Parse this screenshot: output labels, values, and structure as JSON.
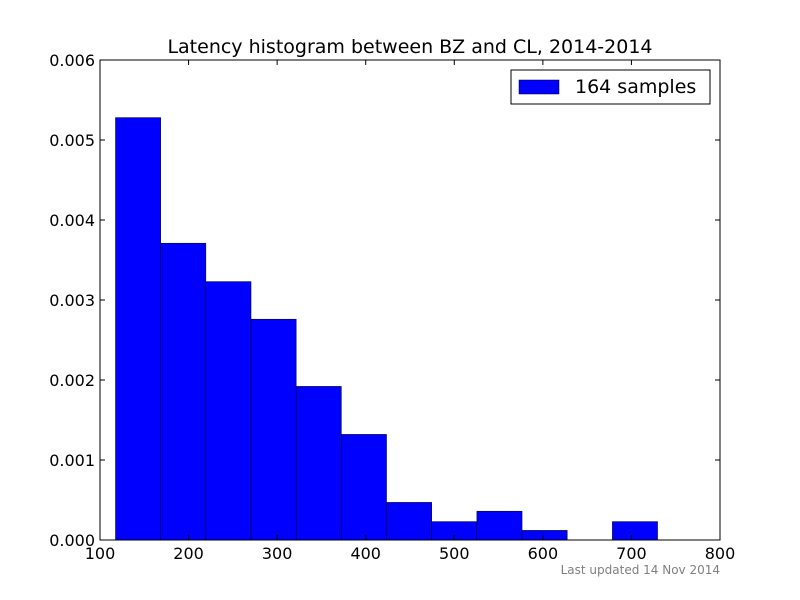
{
  "chart_data": {
    "type": "bar",
    "title": "Latency histogram between BZ and CL, 2014-2014",
    "xlabel": "",
    "ylabel": "",
    "xlim": [
      100,
      800
    ],
    "ylim": [
      0,
      0.006
    ],
    "x_ticks": [
      100,
      200,
      300,
      400,
      500,
      600,
      700,
      800
    ],
    "x_tick_labels": [
      "100",
      "200",
      "300",
      "400",
      "500",
      "600",
      "700",
      "800"
    ],
    "y_ticks": [
      0,
      0.001,
      0.002,
      0.003,
      0.004,
      0.005,
      0.006
    ],
    "y_tick_labels": [
      "0.000",
      "0.001",
      "0.002",
      "0.003",
      "0.004",
      "0.005",
      "0.006"
    ],
    "grid": false,
    "legend_position": "top-right",
    "series": [
      {
        "name": "164 samples",
        "color": "#0000ff",
        "bins": [
          {
            "x0": 117.5,
            "x1": 168.5,
            "value": 0.00528
          },
          {
            "x0": 168.5,
            "x1": 219.5,
            "value": 0.00371
          },
          {
            "x0": 219.5,
            "x1": 270.5,
            "value": 0.00323
          },
          {
            "x0": 270.5,
            "x1": 321.5,
            "value": 0.00276
          },
          {
            "x0": 321.5,
            "x1": 372.5,
            "value": 0.00192
          },
          {
            "x0": 372.5,
            "x1": 423.5,
            "value": 0.00132
          },
          {
            "x0": 423.5,
            "x1": 474.5,
            "value": 0.00047
          },
          {
            "x0": 474.5,
            "x1": 525.5,
            "value": 0.00023
          },
          {
            "x0": 525.5,
            "x1": 576.5,
            "value": 0.00036
          },
          {
            "x0": 576.5,
            "x1": 627.5,
            "value": 0.00012
          },
          {
            "x0": 627.5,
            "x1": 678.5,
            "value": 0
          },
          {
            "x0": 678.5,
            "x1": 729.5,
            "value": 0.00023
          }
        ]
      }
    ],
    "footer": "Last updated 14 Nov 2014"
  }
}
